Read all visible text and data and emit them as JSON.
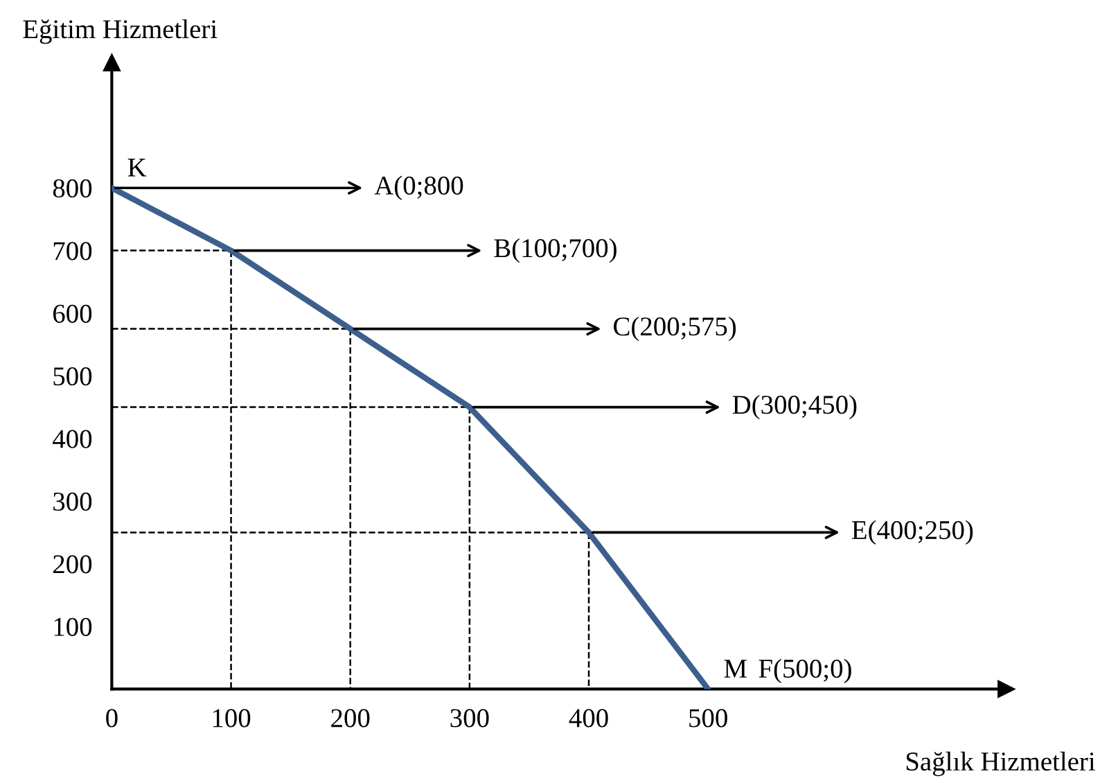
{
  "chart_data": {
    "type": "line",
    "xlabel": "Sağlık Hizmetleri",
    "ylabel": "Eğitim Hizmetleri",
    "x": [
      0,
      100,
      200,
      300,
      400,
      500
    ],
    "series": [
      {
        "color": "#3d5f8e",
        "values": [
          800,
          700,
          575,
          450,
          250,
          0
        ],
        "value_labels": [
          "A(0;800",
          "B(100;700)",
          "C(200;575)",
          "D(300;450)",
          "E(400;250)",
          "F(500;0)"
        ]
      },
      {
        "color": "#000000",
        "line_style": "dashed",
        "x": [
          0,
          100,
          100
        ],
        "values": [
          700,
          700,
          0
        ]
      },
      {
        "color": "#000000",
        "line_style": "dashed",
        "x": [
          0,
          200,
          200
        ],
        "values": [
          575,
          575,
          0
        ]
      },
      {
        "color": "#000000",
        "line_style": "dashed",
        "x": [
          0,
          300,
          300
        ],
        "values": [
          450,
          450,
          0
        ]
      },
      {
        "color": "#000000",
        "line_style": "dashed",
        "x": [
          0,
          400,
          400
        ],
        "values": [
          250,
          250,
          0
        ]
      }
    ],
    "annotations": [
      {
        "text": "K",
        "x": 0,
        "y": 800
      },
      {
        "text": "M",
        "x": 500,
        "y": 0
      }
    ],
    "xlim": [
      0,
      750
    ],
    "ylim": [
      0,
      1000
    ],
    "xticks": [
      0,
      100,
      200,
      300,
      400,
      500
    ],
    "yticks": [
      100,
      200,
      300,
      400,
      500,
      600,
      700,
      800
    ],
    "marker": "none",
    "line_style": "solid"
  }
}
